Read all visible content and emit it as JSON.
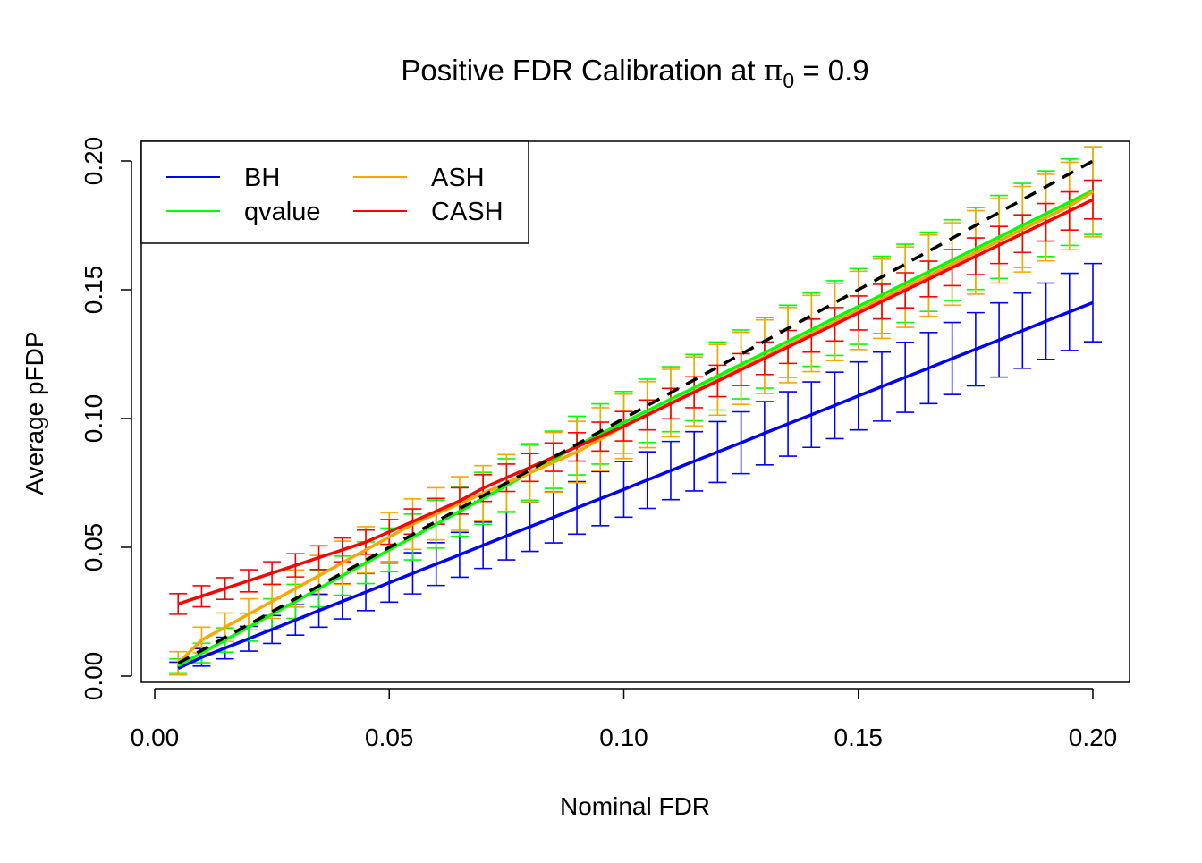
{
  "chart_data": {
    "type": "line",
    "title": {
      "prefix": "Positive FDR Calibration at ",
      "symbol": "π",
      "subscript": "0",
      "suffix": " = 0.9"
    },
    "xlabel": "Nominal FDR",
    "ylabel": "Average pFDP",
    "xlim": [
      0,
      0.2
    ],
    "ylim": [
      0,
      0.2
    ],
    "xticks": [
      "0.00",
      "0.05",
      "0.10",
      "0.15",
      "0.20"
    ],
    "yticks": [
      "0.00",
      "0.05",
      "0.10",
      "0.15",
      "0.20"
    ],
    "grid": false,
    "legend": {
      "placement": "top-left",
      "columns": 2
    },
    "reference_line": {
      "style": "dashed",
      "color": "#000000",
      "description": "y = x"
    },
    "x": [
      0.005,
      0.01,
      0.015,
      0.02,
      0.025,
      0.03,
      0.035,
      0.04,
      0.045,
      0.05,
      0.055,
      0.06,
      0.065,
      0.07,
      0.075,
      0.08,
      0.085,
      0.09,
      0.095,
      0.1,
      0.105,
      0.11,
      0.115,
      0.12,
      0.125,
      0.13,
      0.135,
      0.14,
      0.145,
      0.15,
      0.155,
      0.16,
      0.165,
      0.17,
      0.175,
      0.18,
      0.185,
      0.19,
      0.195,
      0.2
    ],
    "series": [
      {
        "name": "BH",
        "color": "#0000FF",
        "values": [
          0.003,
          0.0073,
          0.0109,
          0.0145,
          0.0181,
          0.0218,
          0.0254,
          0.029,
          0.0326,
          0.0363,
          0.0399,
          0.0435,
          0.0471,
          0.0508,
          0.0544,
          0.058,
          0.0616,
          0.0653,
          0.0689,
          0.0725,
          0.0761,
          0.0798,
          0.0834,
          0.087,
          0.0906,
          0.0943,
          0.0979,
          0.1015,
          0.1051,
          0.1088,
          0.1124,
          0.116,
          0.1196,
          0.1233,
          0.1269,
          0.1305,
          0.1341,
          0.1378,
          0.1414,
          0.145
        ],
        "error": [
          0.0024,
          0.0034,
          0.0042,
          0.0048,
          0.0054,
          0.0059,
          0.0064,
          0.0068,
          0.0072,
          0.0076,
          0.008,
          0.0083,
          0.0087,
          0.009,
          0.0093,
          0.0096,
          0.0099,
          0.0102,
          0.0105,
          0.0108,
          0.011,
          0.0113,
          0.0115,
          0.0118,
          0.012,
          0.0123,
          0.0125,
          0.0127,
          0.0129,
          0.0132,
          0.0134,
          0.0136,
          0.0138,
          0.014,
          0.0142,
          0.0144,
          0.0146,
          0.0148,
          0.015,
          0.0152
        ]
      },
      {
        "name": "qvalue",
        "color": "#00FF00",
        "values": [
          0.004,
          0.009,
          0.014,
          0.019,
          0.024,
          0.029,
          0.034,
          0.039,
          0.044,
          0.049,
          0.054,
          0.059,
          0.064,
          0.069,
          0.074,
          0.079,
          0.084,
          0.0895,
          0.094,
          0.0985,
          0.103,
          0.1075,
          0.112,
          0.1165,
          0.121,
          0.1255,
          0.13,
          0.1345,
          0.139,
          0.1435,
          0.148,
          0.1525,
          0.157,
          0.1615,
          0.166,
          0.1705,
          0.175,
          0.1795,
          0.184,
          0.1885
        ],
        "error": [
          0.0027,
          0.0038,
          0.0047,
          0.0054,
          0.006,
          0.0066,
          0.0071,
          0.0076,
          0.0081,
          0.0085,
          0.0089,
          0.0093,
          0.0097,
          0.0101,
          0.0104,
          0.0107,
          0.0111,
          0.0114,
          0.0117,
          0.012,
          0.0123,
          0.0126,
          0.0129,
          0.0132,
          0.0134,
          0.0137,
          0.014,
          0.0142,
          0.0145,
          0.0147,
          0.015,
          0.0152,
          0.0154,
          0.0157,
          0.0159,
          0.0161,
          0.0163,
          0.0166,
          0.0168,
          0.017
        ]
      },
      {
        "name": "ASH",
        "color": "#FFA500",
        "values": [
          0.005,
          0.014,
          0.019,
          0.024,
          0.029,
          0.034,
          0.039,
          0.044,
          0.049,
          0.054,
          0.059,
          0.063,
          0.067,
          0.071,
          0.075,
          0.079,
          0.083,
          0.087,
          0.092,
          0.097,
          0.1015,
          0.106,
          0.1105,
          0.115,
          0.1195,
          0.124,
          0.1285,
          0.133,
          0.1375,
          0.142,
          0.1465,
          0.151,
          0.1555,
          0.16,
          0.1645,
          0.169,
          0.1735,
          0.178,
          0.1825,
          0.188
        ],
        "error": [
          0.0045,
          0.005,
          0.0055,
          0.006,
          0.0066,
          0.0072,
          0.0078,
          0.0084,
          0.009,
          0.0095,
          0.0098,
          0.0101,
          0.0104,
          0.0107,
          0.011,
          0.0113,
          0.0116,
          0.0119,
          0.0122,
          0.0125,
          0.0128,
          0.0131,
          0.0134,
          0.0137,
          0.014,
          0.0143,
          0.0146,
          0.0148,
          0.015,
          0.0152,
          0.0154,
          0.0156,
          0.0158,
          0.016,
          0.0162,
          0.0164,
          0.0166,
          0.0168,
          0.017,
          0.0175
        ]
      },
      {
        "name": "CASH",
        "color": "#FF0000",
        "values": [
          0.028,
          0.031,
          0.034,
          0.037,
          0.04,
          0.043,
          0.046,
          0.049,
          0.052,
          0.056,
          0.06,
          0.064,
          0.068,
          0.073,
          0.077,
          0.081,
          0.085,
          0.089,
          0.093,
          0.097,
          0.1014,
          0.1058,
          0.1102,
          0.1146,
          0.119,
          0.1234,
          0.1278,
          0.1322,
          0.1366,
          0.141,
          0.1454,
          0.1498,
          0.1542,
          0.1586,
          0.163,
          0.1674,
          0.1718,
          0.1762,
          0.1806,
          0.185
        ],
        "error": [
          0.004,
          0.0041,
          0.0042,
          0.0043,
          0.0044,
          0.0045,
          0.0046,
          0.0046,
          0.0047,
          0.0048,
          0.0049,
          0.005,
          0.0051,
          0.0052,
          0.0053,
          0.0054,
          0.0055,
          0.0055,
          0.0056,
          0.0057,
          0.0058,
          0.0059,
          0.006,
          0.0061,
          0.0062,
          0.0063,
          0.0064,
          0.0064,
          0.0065,
          0.0066,
          0.0067,
          0.0068,
          0.0069,
          0.007,
          0.0071,
          0.0072,
          0.0073,
          0.0073,
          0.0074,
          0.0075
        ]
      }
    ]
  }
}
